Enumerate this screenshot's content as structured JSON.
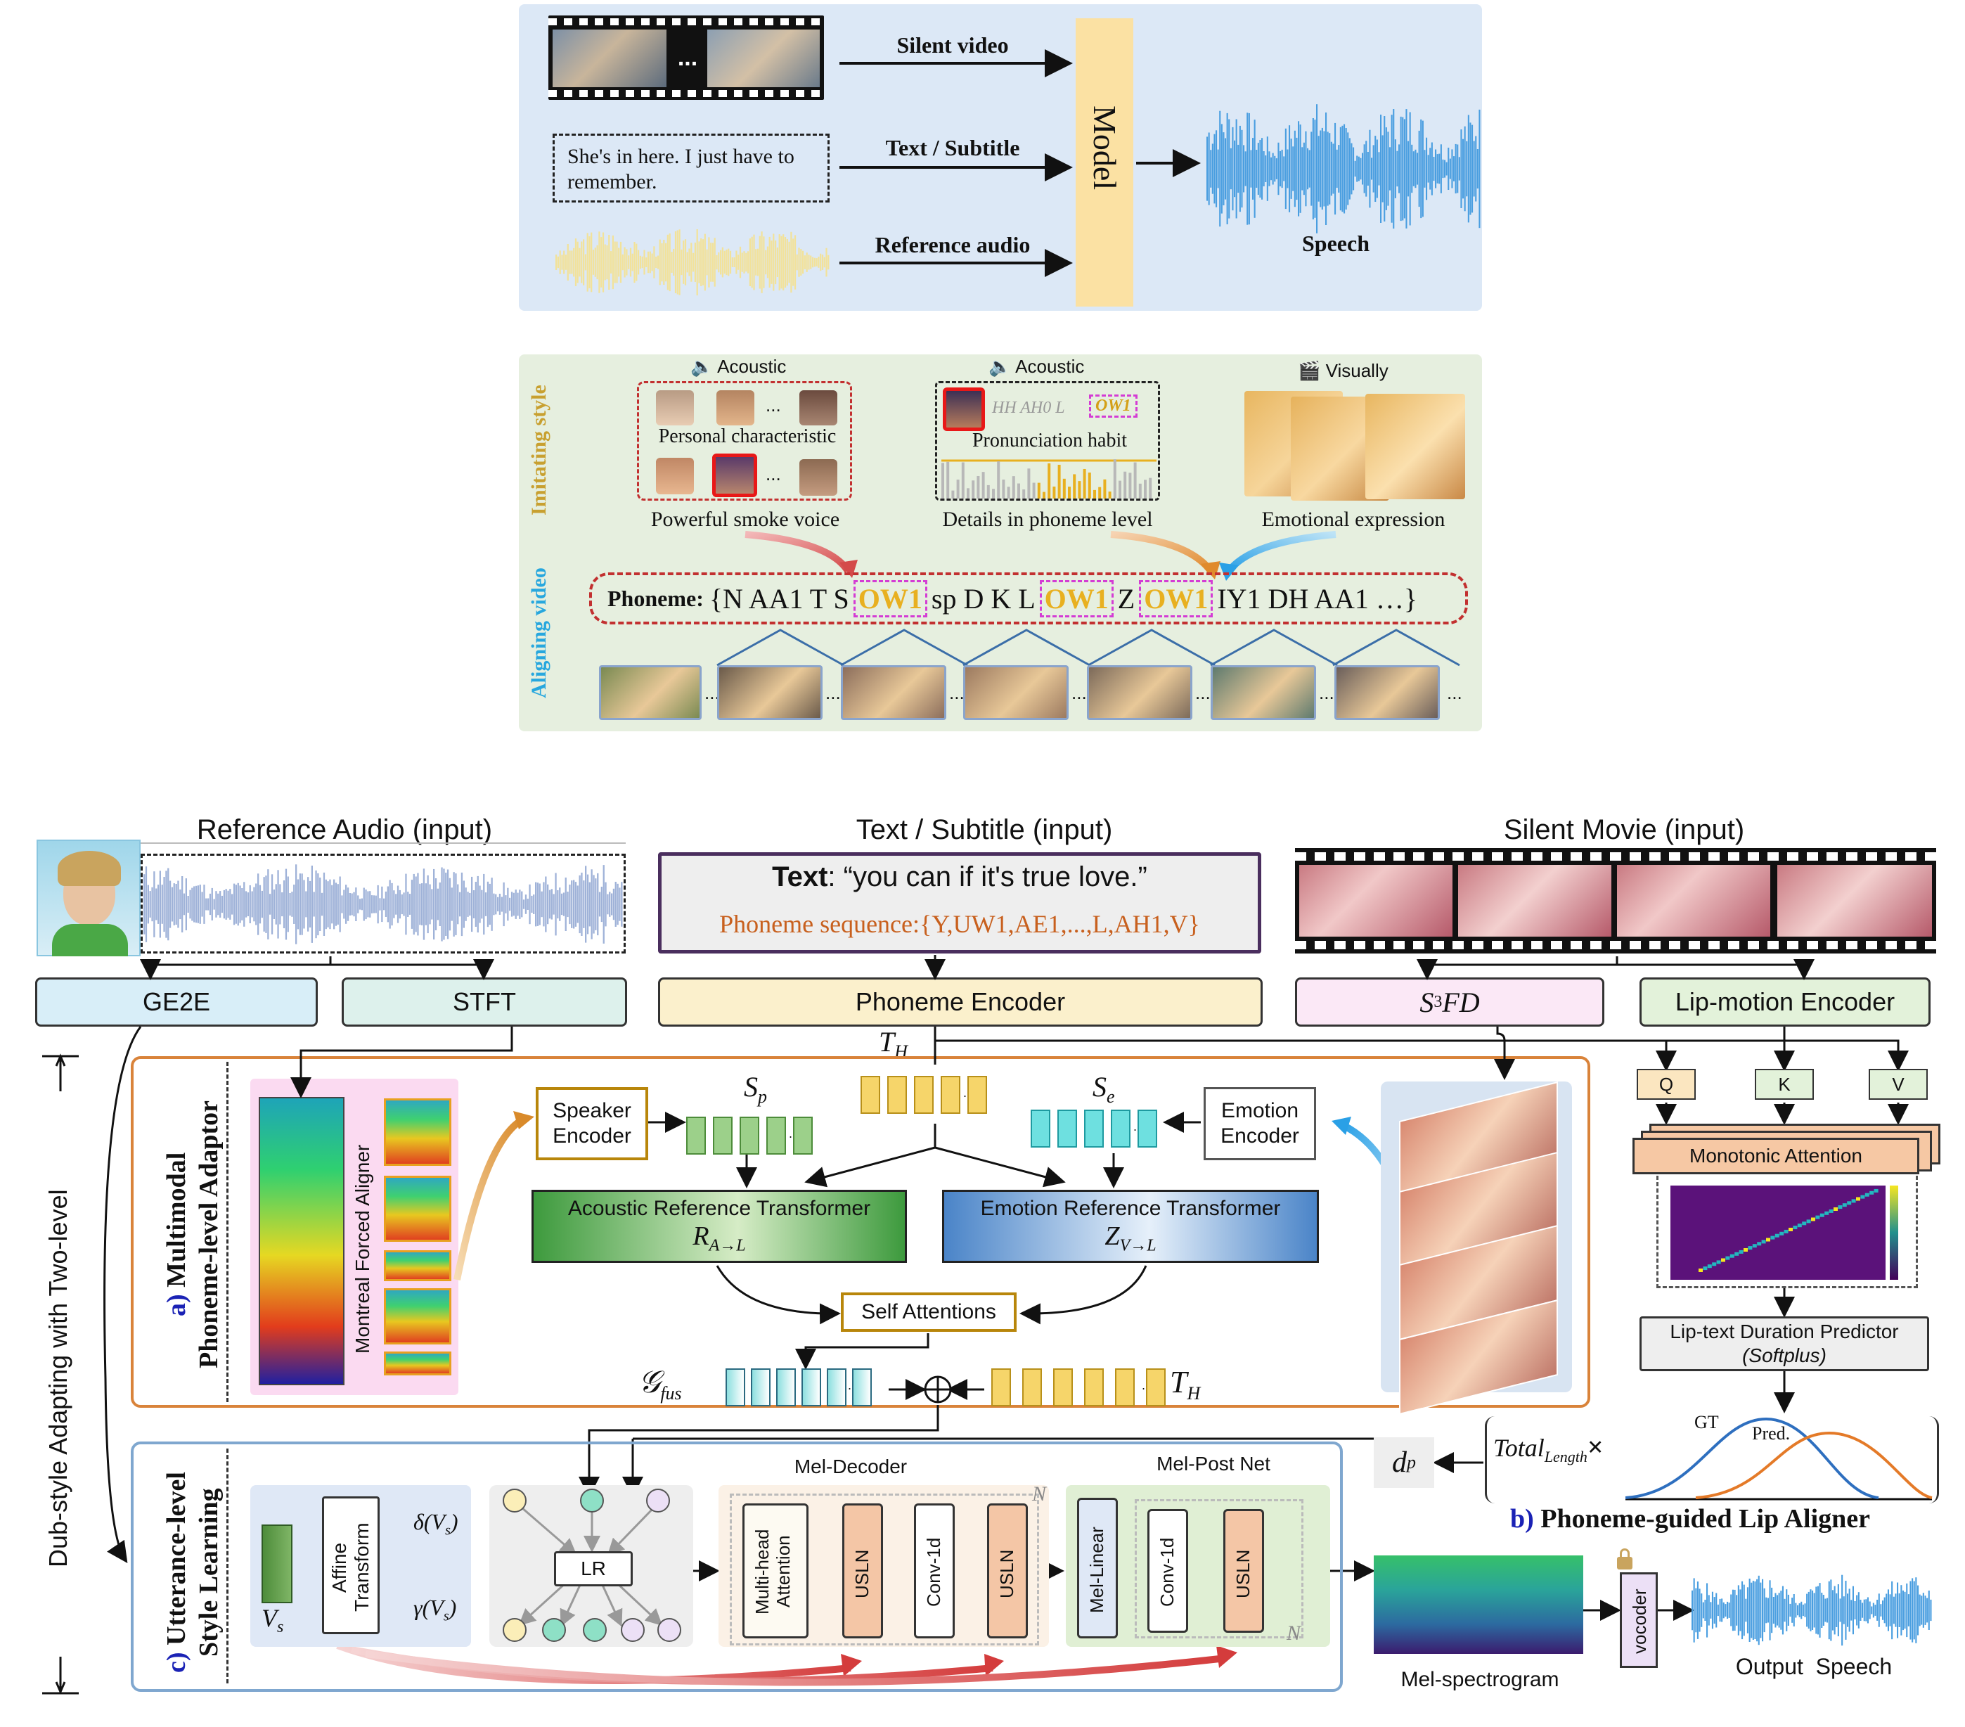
{
  "top": {
    "silent_video": "Silent video",
    "subtitle_box": "She's in here. I just have to remember.",
    "text_subtitle": "Text / Subtitle",
    "reference_audio": "Reference audio",
    "model": "Model",
    "speech": "Speech",
    "ellipsis": "..."
  },
  "middle": {
    "imitating_style": "Imitating style",
    "aligning_video": "Aligning video",
    "acoustic_1": "Acoustic",
    "acoustic_2": "Acoustic",
    "visually": "Visually",
    "personal_characteristic": "Personal characteristic",
    "pronunciation_habit": "Pronunciation habit",
    "phon_snippet": "HH AH0 L",
    "phon_ow": "OW1",
    "powerful_smoke_voice": "Powerful smoke voice",
    "details_phoneme": "Details in phoneme level",
    "emotional_expression": "Emotional expression",
    "phoneme_label": "Phoneme:",
    "phoneme_seq": [
      {
        "t": "{N AA1 T S",
        "hl": false
      },
      {
        "t": "OW1",
        "hl": true
      },
      {
        "t": "sp D K L",
        "hl": false
      },
      {
        "t": "OW1",
        "hl": true
      },
      {
        "t": "Z",
        "hl": false
      },
      {
        "t": "OW1",
        "hl": true
      },
      {
        "t": "IY1 DH AA1 …}",
        "hl": false
      }
    ],
    "ellipsis": "..."
  },
  "bottom": {
    "ref_audio_title": "Reference Audio (input)",
    "text_title": "Text / Subtitle (input)",
    "silent_movie_title": "Silent Movie (input)",
    "text_bold": "Text",
    "text_quote": ": “you can if it's true love.”",
    "phoneme_seq_label": "Phoneme sequence:",
    "phoneme_seq_value": "{Y,UW1,AE1,...,L,AH1,V}",
    "ge2e": "GE2E",
    "stft": "STFT",
    "phoneme_encoder": "Phoneme Encoder",
    "s3fd_main": "S",
    "s3fd_sup": "3",
    "s3fd_rest": "FD",
    "lip_motion_encoder": "Lip-motion Encoder",
    "th_main": "T",
    "th_sub": "H",
    "dub_style": "Dub-style Adapting with Two-level",
    "mmpa_label_a": "a)",
    "mmpa_label_1": "Multimodal",
    "mmpa_label_2": "Phoneme-level Adaptor",
    "mfa": "Montreal Forced Aligner",
    "speaker_encoder": "Speaker Encoder",
    "emotion_encoder": "Emotion Encoder",
    "sp_main": "S",
    "sp_sub": "p",
    "se_main": "S",
    "se_sub": "e",
    "art": "Acoustic Reference Transformer",
    "art_sym": "R",
    "art_sub": "A→L",
    "ert": "Emotion Reference Transformer",
    "ert_sym": "Z",
    "ert_sub": "V→L",
    "self_attn": "Self Attentions",
    "gfus_main": "𝒢",
    "gfus_sub": "fus",
    "q": "Q",
    "k": "K",
    "v": "V",
    "monotonic": "Monotonic Attention",
    "duration_pred": "Lip-text Duration Predictor",
    "softplus": "(Softplus)",
    "total_length": "Total",
    "total_sub": "Length",
    "times": "×",
    "gt": "GT",
    "pred": "Pred.",
    "dp_main": "d",
    "dp_sub": "p",
    "b_label": "b)",
    "b_title": "Phoneme-guided Lip Aligner",
    "c_label": "c)",
    "c_title_1": "Utterance-level",
    "c_title_2": "Style Learning",
    "affine": "Affine Transform",
    "delta": "δ(V",
    "gamma": "γ(V",
    "vs_sub": "s",
    "vs_main": "V",
    "lr": "LR",
    "mel_decoder": "Mel-Decoder",
    "mel_post": "Mel-Post Net",
    "mha": "Multi-head Attention",
    "usln": "USLN",
    "conv1d": "Conv-1d",
    "mel_linear": "Mel-Linear",
    "n": "N",
    "mel_spec": "Mel-spectrogram",
    "vocoder": "vocoder",
    "output_speech": "Output  Speech"
  },
  "colors": {
    "top_panel": "#dce8f6",
    "middle_panel": "#e6efdf",
    "model_box": "#fbe1a3",
    "speech_wave": "#4a9ee0",
    "ref_wave": "#f2e29a",
    "orange_border": "#d9833a",
    "blue_border": "#7fa7cf",
    "gold_text": "#d4a017",
    "cyan_text": "#27a7de",
    "dark_blue_label": "#1a22b5"
  }
}
